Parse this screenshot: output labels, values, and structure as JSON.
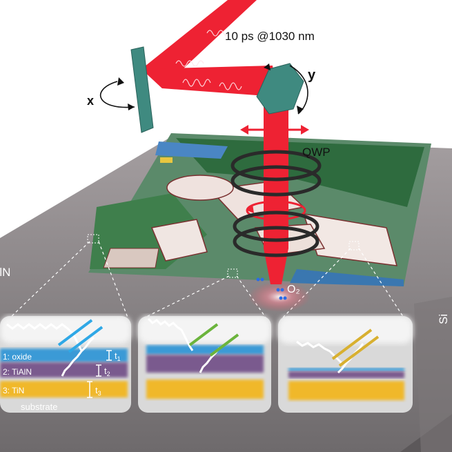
{
  "laser": {
    "pulse_label": "10 ps @1030 nm"
  },
  "axes": {
    "x_label": "x",
    "y_label": "y"
  },
  "optics": {
    "qwp_label": "QWP"
  },
  "chemistry": {
    "o2_label": "O₂"
  },
  "sample": {
    "left_edge_label": "AlN",
    "right_edge_label": "Si"
  },
  "insets": {
    "layer1": "1: oxide",
    "layer2": "2: TiAlN",
    "layer3": "3: TiN",
    "substrate": "substrate",
    "t1": "t",
    "t1_sub": "1",
    "t2": "t",
    "t2_sub": "2",
    "t3": "t",
    "t3_sub": "3"
  },
  "colors": {
    "beam": "#ee2233",
    "mirror": "#3f8a80",
    "oxide": "#3a9ad6",
    "tialn": "#7a5a8e",
    "tin": "#f0b82a",
    "plate": "#8a8486",
    "reflect_blue": "#2fa8e6",
    "reflect_green": "#6bb43c",
    "reflect_gold": "#d8b030"
  }
}
